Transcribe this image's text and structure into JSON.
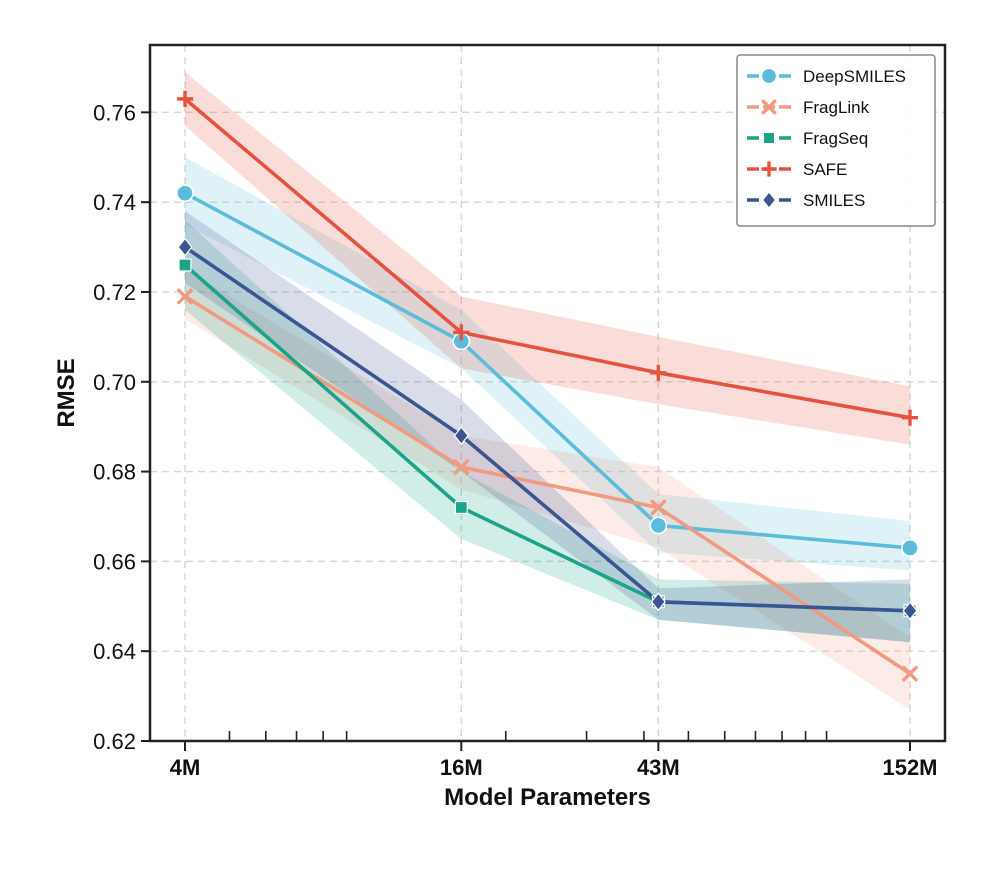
{
  "chart_data": {
    "type": "line",
    "title": "",
    "xlabel": "Model Parameters",
    "ylabel": "RMSE",
    "x_scale": "log",
    "x": [
      4,
      16,
      43,
      152
    ],
    "x_tick_labels": [
      "4M",
      "16M",
      "43M",
      "152M"
    ],
    "ylim": [
      0.62,
      0.775
    ],
    "y_ticks": [
      0.62,
      0.64,
      0.66,
      0.68,
      0.7,
      0.72,
      0.74,
      0.76
    ],
    "y_tick_labels": [
      "0.62",
      "0.64",
      "0.66",
      "0.68",
      "0.70",
      "0.72",
      "0.74",
      "0.76"
    ],
    "grid": true,
    "legend_position": "top-right",
    "series": [
      {
        "name": "DeepSMILES",
        "color": "#5bbcdb",
        "marker": "circle",
        "values": [
          0.742,
          0.709,
          0.668,
          0.663
        ],
        "lower": [
          0.735,
          0.703,
          0.662,
          0.658
        ],
        "upper": [
          0.75,
          0.716,
          0.675,
          0.669
        ]
      },
      {
        "name": "FragLink",
        "color": "#f09a80",
        "marker": "x",
        "values": [
          0.719,
          0.681,
          0.672,
          0.635
        ],
        "lower": [
          0.714,
          0.676,
          0.663,
          0.627
        ],
        "upper": [
          0.725,
          0.688,
          0.681,
          0.643
        ]
      },
      {
        "name": "FragSeq",
        "color": "#1ba48a",
        "marker": "square",
        "values": [
          0.726,
          0.672,
          0.651,
          0.649
        ],
        "lower": [
          0.716,
          0.665,
          0.647,
          0.642
        ],
        "upper": [
          0.736,
          0.68,
          0.656,
          0.655
        ]
      },
      {
        "name": "SAFE",
        "color": "#e5533f",
        "marker": "plus",
        "values": [
          0.763,
          0.711,
          0.702,
          0.692
        ],
        "lower": [
          0.757,
          0.703,
          0.695,
          0.686
        ],
        "upper": [
          0.769,
          0.719,
          0.71,
          0.699
        ]
      },
      {
        "name": "SMILES",
        "color": "#3a5592",
        "marker": "diamond",
        "values": [
          0.73,
          0.688,
          0.651,
          0.649
        ],
        "lower": [
          0.722,
          0.68,
          0.647,
          0.642
        ],
        "upper": [
          0.738,
          0.696,
          0.654,
          0.656
        ]
      }
    ]
  }
}
